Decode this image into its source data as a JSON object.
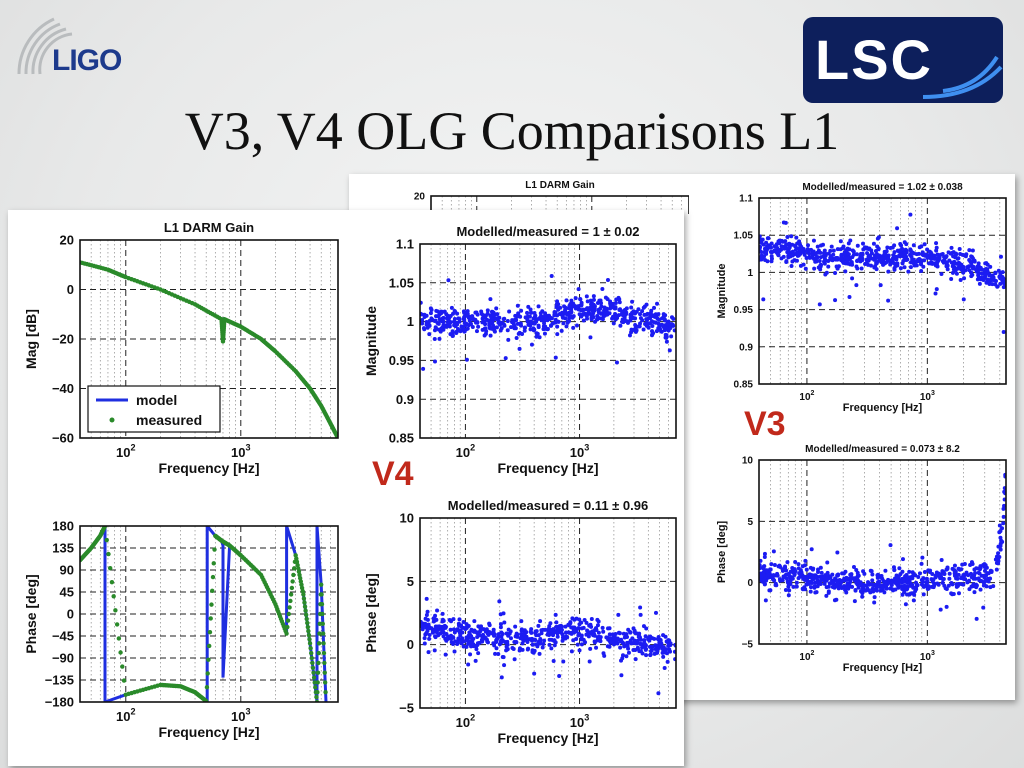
{
  "slide": {
    "title": "V3, V4 OLG Comparisons L1",
    "logo_left_text": "LIGO",
    "logo_right_text": "LSC",
    "v3_label": "V3",
    "v4_label": "V4",
    "colors": {
      "model": "#1f2fe0",
      "measured": "#2a8a2a",
      "scatter": "#1c1cf2",
      "version_label": "#c1291b",
      "ligo_blue": "#1d3a8c",
      "lsc_navy": "#0d1f5c"
    }
  },
  "chart_data": [
    {
      "id": "v4-mag",
      "type": "line",
      "title": "L1 DARM Gain",
      "xlabel": "Frequency [Hz]",
      "ylabel": "Mag [dB]",
      "xscale": "log",
      "xlim": [
        40,
        7000
      ],
      "ylim": [
        -60,
        20
      ],
      "yticks": [
        20,
        0,
        -20,
        -40,
        -60
      ],
      "yticklabels": [
        "20",
        "0",
        "−20",
        "−40",
        "−60"
      ],
      "xticks": [
        100,
        1000
      ],
      "legend": {
        "placement": "bottom-left",
        "entries": [
          "model",
          "measured"
        ]
      },
      "grid": true,
      "series": [
        {
          "name": "model",
          "style": "line",
          "x": [
            40,
            70,
            100,
            200,
            400,
            680,
            700,
            720,
            1000,
            1500,
            2000,
            3000,
            4000,
            5000,
            6000,
            7000
          ],
          "y": [
            11,
            8,
            5,
            0,
            -6,
            -12,
            -19,
            -12,
            -15,
            -20,
            -25,
            -33,
            -40,
            -47,
            -54,
            -60
          ]
        },
        {
          "name": "measured",
          "style": "points",
          "x": [
            40,
            70,
            100,
            200,
            400,
            680,
            700,
            720,
            1000,
            1500,
            2000,
            3000,
            4000,
            5000,
            6000,
            7000
          ],
          "y": [
            11,
            8,
            5,
            0,
            -6,
            -12,
            -21,
            -12,
            -15,
            -20,
            -25,
            -33,
            -40,
            -47,
            -54,
            -60
          ]
        }
      ]
    },
    {
      "id": "v4-phase",
      "type": "line",
      "title": "",
      "xlabel": "Frequency [Hz]",
      "ylabel": "Phase [deg]",
      "xscale": "log",
      "xlim": [
        40,
        7000
      ],
      "ylim": [
        -180,
        180
      ],
      "yticks": [
        180,
        135,
        90,
        45,
        0,
        -45,
        -90,
        -135,
        -180
      ],
      "yticklabels": [
        "180",
        "135",
        "90",
        "45",
        "0",
        "−45",
        "−90",
        "−135",
        "−180"
      ],
      "xticks": [
        100,
        1000
      ],
      "grid": true,
      "series": [
        {
          "name": "model",
          "style": "line",
          "x": [
            40,
            50,
            60,
            66,
            66,
            100,
            200,
            300,
            400,
            500,
            510,
            510,
            600,
            680,
            700,
            700,
            800,
            1000,
            1500,
            2000,
            2500,
            2500,
            3000,
            3500,
            4000,
            4600,
            4600,
            5000,
            5500
          ],
          "y": [
            110,
            135,
            160,
            180,
            -180,
            -165,
            -145,
            -148,
            -160,
            -178,
            -180,
            180,
            160,
            150,
            140,
            -130,
            140,
            120,
            80,
            20,
            -40,
            180,
            120,
            40,
            -60,
            -180,
            180,
            60,
            -180
          ]
        },
        {
          "name": "measured",
          "style": "points",
          "x": [
            40,
            50,
            60,
            66,
            100,
            200,
            300,
            400,
            500,
            600,
            680,
            800,
            1000,
            1500,
            2000,
            2500,
            3000,
            3500,
            4000,
            4600,
            5000,
            5500
          ],
          "y": [
            110,
            135,
            160,
            180,
            -165,
            -145,
            -148,
            -160,
            -178,
            160,
            150,
            140,
            120,
            80,
            20,
            -40,
            120,
            40,
            -60,
            -180,
            60,
            -180
          ]
        }
      ]
    },
    {
      "id": "v4-ratio-mag",
      "type": "scatter",
      "title": "Modelled/measured = 1 ± 0.02",
      "xlabel": "Frequency [Hz]",
      "ylabel": "Magnitude",
      "xscale": "log",
      "xlim": [
        40,
        7000
      ],
      "ylim": [
        0.85,
        1.1
      ],
      "yticks": [
        1.1,
        1.05,
        1,
        0.95,
        0.9,
        0.85
      ],
      "yticklabels": [
        "1.1",
        "1.05",
        "1",
        "0.95",
        "0.9",
        "0.85"
      ],
      "xticks": [
        100,
        1000
      ],
      "grid": true,
      "series": [
        {
          "name": "",
          "center": 1.0,
          "spread": 0.02,
          "x": [
            40,
            80,
            150,
            300,
            600,
            1000,
            2000,
            4000,
            7000
          ],
          "y": [
            1.0,
            1.0,
            1.0,
            1.0,
            1.0,
            1.02,
            1.01,
            1.0,
            0.99
          ]
        }
      ]
    },
    {
      "id": "v4-ratio-phase",
      "type": "scatter",
      "title": "Modelled/measured = 0.11 ± 0.96",
      "xlabel": "Frequency [Hz]",
      "ylabel": "Phase [deg]",
      "xscale": "log",
      "xlim": [
        40,
        7000
      ],
      "ylim": [
        -5,
        10
      ],
      "yticks": [
        10,
        5,
        0,
        -5
      ],
      "yticklabels": [
        "10",
        "5",
        "0",
        "−5"
      ],
      "xticks": [
        100,
        1000
      ],
      "grid": true,
      "series": [
        {
          "name": "",
          "center": 0.11,
          "spread": 0.96,
          "x": [
            40,
            80,
            150,
            300,
            600,
            1000,
            2000,
            4000,
            7000
          ],
          "y": [
            1.5,
            1.0,
            0.5,
            0.3,
            0.8,
            1.2,
            0.3,
            0.0,
            -0.3
          ]
        }
      ]
    },
    {
      "id": "v3-mag",
      "type": "line",
      "title": "L1 DARM Gain",
      "xlabel": "",
      "ylabel": "",
      "xscale": "log",
      "xlim": [
        40,
        7000
      ],
      "ylim": [
        -60,
        20
      ],
      "yticks": [
        20
      ],
      "yticklabels": [
        "20"
      ],
      "xticks": [],
      "grid": true,
      "series": []
    },
    {
      "id": "v3-ratio-mag",
      "type": "scatter",
      "title": "Modelled/measured = 1.02 ± 0.038",
      "xlabel": "Frequency [Hz]",
      "ylabel": "Magnitude",
      "xscale": "log",
      "xlim": [
        40,
        4500
      ],
      "ylim": [
        0.85,
        1.1
      ],
      "yticks": [
        1.1,
        1.05,
        1,
        0.95,
        0.9,
        0.85
      ],
      "yticklabels": [
        "1.1",
        "1.05",
        "1",
        "0.95",
        "0.9",
        "0.85"
      ],
      "xticks": [
        100,
        1000
      ],
      "grid": true,
      "series": [
        {
          "name": "",
          "center": 1.02,
          "spread": 0.038,
          "x": [
            40,
            80,
            150,
            300,
            600,
            1000,
            2000,
            3000,
            4500
          ],
          "y": [
            1.03,
            1.03,
            1.02,
            1.02,
            1.02,
            1.02,
            1.01,
            1.0,
            0.99
          ]
        }
      ]
    },
    {
      "id": "v3-ratio-phase",
      "type": "scatter",
      "title": "Modelled/measured = 0.073 ± 8.2",
      "xlabel": "Frequency [Hz]",
      "ylabel": "Phase [deg]",
      "xscale": "log",
      "xlim": [
        40,
        4500
      ],
      "ylim": [
        -5,
        10
      ],
      "yticks": [
        10,
        5,
        0,
        -5
      ],
      "yticklabels": [
        "10",
        "5",
        "0",
        "−5"
      ],
      "xticks": [
        100,
        1000
      ],
      "grid": true,
      "series": [
        {
          "name": "",
          "center": 0.073,
          "spread": 8.2,
          "x": [
            40,
            80,
            150,
            300,
            600,
            1000,
            2000,
            3000,
            3800,
            4200,
            4500
          ],
          "y": [
            0.8,
            0.5,
            0.2,
            0.0,
            0.0,
            0.2,
            0.3,
            0.5,
            1.5,
            4.0,
            9.0
          ]
        }
      ]
    }
  ]
}
